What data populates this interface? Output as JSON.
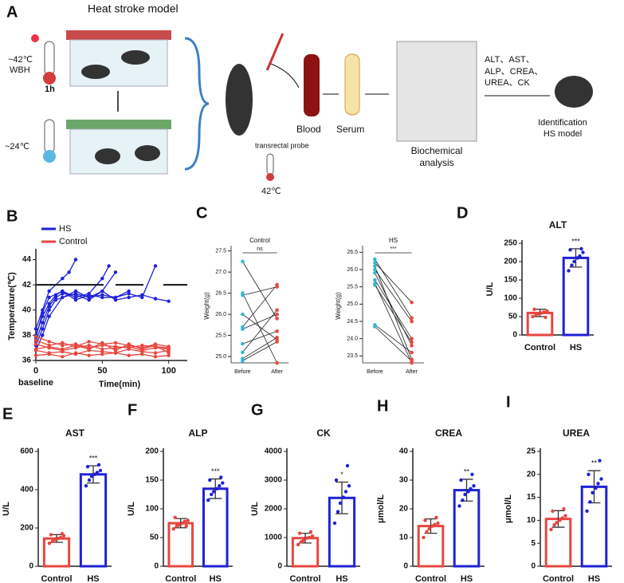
{
  "diagram": {
    "panel": "A",
    "title": "Heat stroke model",
    "hot_temp": "~42℃",
    "hot_method": "WBH",
    "duration": "1h",
    "cool_temp": "~24℃",
    "probe": "transrectal probe",
    "probe_temp": "42℃",
    "blood": "Blood",
    "serum": "Serum",
    "analysis": [
      "Biochemical",
      "analysis"
    ],
    "markers": [
      "ALT、AST、",
      "ALP、CREA、",
      "UREA、CK"
    ],
    "result": [
      "Identification",
      "HS model"
    ]
  },
  "chart_data": [
    {
      "type": "line",
      "panel": "B",
      "ylabel": "Temperature(℃)",
      "xlabel": "Time(min)",
      "baseline": "baseline",
      "xlim": [
        0,
        114
      ],
      "ylim": [
        36,
        44.6
      ],
      "xticks": [
        0,
        50,
        100
      ],
      "yticks": [
        36,
        38,
        40,
        42,
        44
      ],
      "threshold": 42,
      "series": [
        {
          "name": "HS",
          "color": "#1e22d6",
          "lines": [
            {
              "x": [
                0,
                5,
                10,
                15,
                20,
                30,
                40,
                50,
                55
              ],
              "values": [
                38,
                39.5,
                40.5,
                41.2,
                41.5,
                41.0,
                41.3,
                42.5,
                43.5
              ]
            },
            {
              "x": [
                0,
                5,
                10,
                15,
                20,
                30,
                40,
                50,
                60
              ],
              "values": [
                37.5,
                39,
                40.3,
                41,
                41.3,
                41.2,
                40.8,
                41.5,
                43
              ]
            },
            {
              "x": [
                0,
                5,
                10,
                15,
                20,
                30,
                40,
                50,
                60,
                70
              ],
              "values": [
                37.2,
                38.5,
                40,
                40.8,
                41,
                41.5,
                41,
                41.2,
                41,
                41.5
              ]
            },
            {
              "x": [
                0,
                5,
                10,
                20,
                30,
                40,
                50,
                60,
                70,
                80,
                90
              ],
              "values": [
                37.8,
                39.8,
                41,
                41.5,
                40.8,
                41.2,
                41,
                41,
                41.3,
                41,
                43.5
              ]
            },
            {
              "x": [
                0,
                5,
                10,
                20,
                30,
                40,
                50,
                60,
                70,
                80,
                90,
                100
              ],
              "values": [
                36.8,
                38,
                39.5,
                41,
                41.3,
                41,
                41.5,
                40.8,
                41,
                41.2,
                40.9,
                40.7
              ]
            },
            {
              "x": [
                0,
                5,
                10,
                20,
                25,
                30
              ],
              "values": [
                38.5,
                40,
                41.5,
                42.5,
                43,
                44
              ]
            }
          ]
        },
        {
          "name": "Control",
          "color": "#e8463f",
          "lines": [
            {
              "x": [
                0,
                10,
                20,
                30,
                40,
                50,
                60,
                70,
                80,
                90,
                100
              ],
              "values": [
                37.3,
                37,
                36.8,
                37,
                37.2,
                36.9,
                37,
                37.1,
                36.8,
                37,
                36.9
              ]
            },
            {
              "x": [
                0,
                10,
                20,
                30,
                40,
                50,
                60,
                70,
                80,
                90,
                100
              ],
              "values": [
                36.8,
                36.6,
                36.7,
                36.5,
                36.8,
                36.7,
                36.6,
                36.9,
                36.7,
                36.6,
                36.8
              ]
            },
            {
              "x": [
                0,
                10,
                20,
                30,
                40,
                50,
                60,
                70,
                80,
                90,
                100
              ],
              "values": [
                37.6,
                37.2,
                37.4,
                37.1,
                37.5,
                37.3,
                37.4,
                37.2,
                37.0,
                37.3,
                37.1
              ]
            },
            {
              "x": [
                0,
                10,
                20,
                30,
                40,
                50,
                60,
                70,
                80,
                90,
                100
              ],
              "values": [
                36.4,
                36.5,
                36.3,
                36.6,
                36.4,
                36.5,
                36.6,
                36.4,
                36.5,
                36.3,
                36.4
              ]
            },
            {
              "x": [
                0,
                10,
                20,
                30,
                40,
                50,
                60,
                70,
                80,
                90,
                100
              ],
              "values": [
                37.9,
                37.5,
                37.2,
                37.3,
                37,
                37.2,
                37.1,
                37,
                37.2,
                37.1,
                37
              ]
            },
            {
              "x": [
                0,
                10,
                20,
                30,
                40,
                50,
                60,
                70,
                80,
                90,
                100
              ],
              "values": [
                36.9,
                37.1,
                36.9,
                37.2,
                36.9,
                37.4,
                36.8,
                37.3,
                36.9,
                37.2,
                36.6
              ]
            }
          ]
        }
      ]
    },
    {
      "type": "paired",
      "panel": "C",
      "title": "Control",
      "significance": "ns",
      "ylabel": "Weight(g)",
      "categories": [
        "Before",
        "After"
      ],
      "colors": [
        "#35b6d6",
        "#e8483f"
      ],
      "ylim": [
        24.85,
        27.55
      ],
      "yticks": [
        {
          "value": 25,
          "label": "25.0"
        },
        25.5,
        {
          "value": 26,
          "label": "26.0"
        },
        26.5,
        {
          "value": 27,
          "label": "27.0"
        },
        27.5
      ],
      "values": [
        [
          27.25,
          26.5,
          26.45,
          26.0,
          25.7,
          25.65,
          25.3,
          25.1,
          24.95,
          24.9
        ],
        [
          25.9,
          24.85,
          26.65,
          25.4,
          26.7,
          26.0,
          25.6,
          26.1,
          25.45,
          25.35
        ]
      ]
    },
    {
      "type": "paired",
      "title": "HS",
      "significance": "***",
      "ylabel": "Weight(g)",
      "categories": [
        "Before",
        "After"
      ],
      "colors": [
        "#35b6d6",
        "#e8483f"
      ],
      "ylim": [
        23.3,
        26.6
      ],
      "yticks": [
        23.5,
        {
          "value": 24,
          "label": "24.0"
        },
        24.5,
        {
          "value": 25,
          "label": "25.0"
        },
        25.5,
        {
          "value": 26,
          "label": "26.0"
        },
        26.5
      ],
      "values": [
        [
          26.3,
          26.2,
          26.1,
          26.0,
          25.9,
          25.7,
          25.6,
          25.55,
          24.4,
          24.35
        ],
        [
          24.6,
          25.05,
          23.4,
          24.5,
          23.8,
          24.0,
          23.3,
          23.9,
          23.6,
          23.35
        ]
      ]
    },
    {
      "type": "bar",
      "panel": "D",
      "title": "ALT",
      "ylabel": "U/L",
      "significance": "***",
      "categories": [
        "Control",
        "HS"
      ],
      "colors": [
        "#e8463f",
        "#1e22d6"
      ],
      "ylim": [
        0,
        250
      ],
      "yticks": [
        0,
        50,
        100,
        150,
        200,
        250
      ],
      "values": [
        60,
        210
      ],
      "errors": [
        10,
        25
      ],
      "points": [
        [
          50,
          55,
          58,
          60,
          62,
          65,
          70,
          48
        ],
        [
          175,
          190,
          200,
          210,
          215,
          225,
          232,
          235
        ]
      ]
    },
    {
      "type": "bar",
      "panel": "E",
      "title": "AST",
      "ylabel": "U/L",
      "significance": "***",
      "categories": [
        "Control",
        "HS"
      ],
      "colors": [
        "#e8463f",
        "#1e22d6"
      ],
      "ylim": [
        0,
        600
      ],
      "yticks": [
        0,
        200,
        400,
        600
      ],
      "values": [
        145,
        480
      ],
      "errors": [
        20,
        45
      ],
      "points": [
        [
          120,
          130,
          140,
          145,
          150,
          160,
          165,
          170
        ],
        [
          420,
          450,
          470,
          480,
          490,
          500,
          520,
          530
        ]
      ]
    },
    {
      "type": "bar",
      "panel": "F",
      "title": "ALP",
      "ylabel": "U/L",
      "significance": "***",
      "categories": [
        "Control",
        "HS"
      ],
      "colors": [
        "#e8463f",
        "#1e22d6"
      ],
      "ylim": [
        0,
        200
      ],
      "yticks": [
        0,
        50,
        100,
        150,
        200
      ],
      "values": [
        75,
        135
      ],
      "errors": [
        8,
        17
      ],
      "points": [
        [
          65,
          70,
          72,
          75,
          78,
          80,
          85,
          70
        ],
        [
          115,
          125,
          130,
          135,
          140,
          145,
          150,
          155
        ]
      ]
    },
    {
      "type": "bar",
      "panel": "G",
      "title": "CK",
      "ylabel": "U/L",
      "significance": "*",
      "categories": [
        "Control",
        "HS"
      ],
      "colors": [
        "#e8463f",
        "#1e22d6"
      ],
      "ylim": [
        0,
        4000
      ],
      "yticks": [
        0,
        1000,
        2000,
        3000,
        4000
      ],
      "values": [
        980,
        2380
      ],
      "errors": [
        170,
        550
      ],
      "points": [
        [
          750,
          850,
          900,
          980,
          1000,
          1050,
          1150,
          1200
        ],
        [
          1500,
          1900,
          2200,
          2400,
          2600,
          2800,
          3000,
          3500
        ]
      ]
    },
    {
      "type": "bar",
      "panel": "H",
      "title": "CREA",
      "ylabel": "μmol/L",
      "significance": "**",
      "categories": [
        "Control",
        "HS"
      ],
      "colors": [
        "#e8463f",
        "#1e22d6"
      ],
      "ylim": [
        0,
        40
      ],
      "yticks": [
        0,
        10,
        20,
        30,
        40
      ],
      "values": [
        14,
        26.5
      ],
      "errors": [
        2.5,
        3.8
      ],
      "points": [
        [
          10,
          12,
          13,
          14,
          14.5,
          15,
          16,
          17
        ],
        [
          21,
          23,
          25,
          26,
          27,
          28,
          30,
          32
        ]
      ]
    },
    {
      "type": "bar",
      "panel": "I",
      "title": "UREA",
      "ylabel": "μmol/L",
      "significance": "**",
      "categories": [
        "Control",
        "HS"
      ],
      "colors": [
        "#e8463f",
        "#1e22d6"
      ],
      "ylim": [
        0,
        25
      ],
      "yticks": [
        0,
        5,
        10,
        15,
        20,
        25
      ],
      "values": [
        10.3,
        17.3
      ],
      "errors": [
        1.8,
        3.5
      ],
      "points": [
        [
          8,
          9,
          9.5,
          10,
          10.5,
          11,
          12,
          12.5
        ],
        [
          12,
          14,
          16,
          17,
          18,
          19,
          20,
          23
        ]
      ]
    }
  ]
}
